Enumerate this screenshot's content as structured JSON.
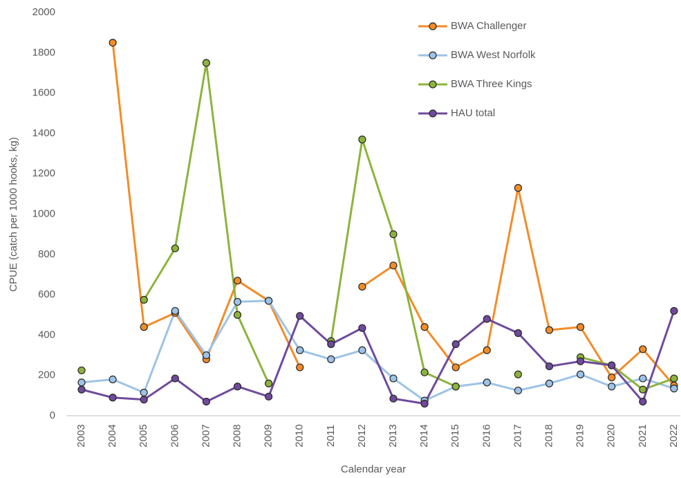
{
  "chart_data": {
    "type": "line",
    "x_label": "Calendar year",
    "y_label": "CPUE (catch per 1000 hooks, kg)",
    "categories": [
      "2003",
      "2004",
      "2005",
      "2006",
      "2007",
      "2008",
      "2009",
      "2010",
      "2011",
      "2012",
      "2013",
      "2014",
      "2015",
      "2016",
      "2017",
      "2018",
      "2019",
      "2020",
      "2021",
      "2022"
    ],
    "series": [
      {
        "name": "BWA Challenger",
        "color": "#f28c28",
        "values": [
          null,
          1850,
          440,
          510,
          280,
          670,
          570,
          240,
          null,
          640,
          745,
          440,
          240,
          325,
          1130,
          425,
          440,
          190,
          330,
          150
        ]
      },
      {
        "name": "BWA West Norfolk",
        "color": "#9dc3e6",
        "values": [
          165,
          180,
          115,
          520,
          300,
          565,
          570,
          325,
          280,
          325,
          185,
          75,
          145,
          165,
          125,
          160,
          205,
          145,
          185,
          135
        ]
      },
      {
        "name": "BWA Three Kings",
        "color": "#8cb43c",
        "values": [
          225,
          null,
          575,
          830,
          1750,
          500,
          160,
          null,
          370,
          1370,
          900,
          215,
          145,
          null,
          205,
          null,
          290,
          250,
          130,
          185
        ]
      },
      {
        "name": "HAU total",
        "color": "#6f4a9c",
        "values": [
          130,
          90,
          80,
          185,
          70,
          145,
          95,
          495,
          355,
          435,
          85,
          60,
          355,
          480,
          410,
          245,
          270,
          250,
          70,
          520
        ]
      }
    ],
    "ylim": [
      0,
      2000
    ],
    "yticks": [
      0,
      200,
      400,
      600,
      800,
      1000,
      1200,
      1400,
      1600,
      1800,
      2000
    ],
    "legend": "top-right"
  }
}
